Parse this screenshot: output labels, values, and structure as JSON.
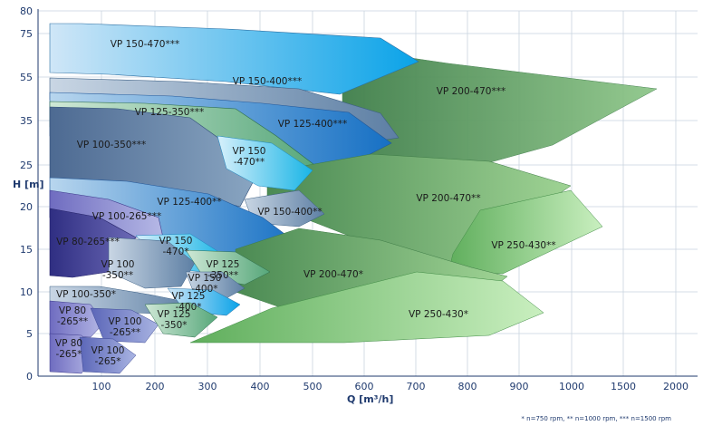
{
  "chart_data": {
    "type": "area",
    "xlabel": "Q [m³/h]",
    "ylabel": "H [m]",
    "footnote": "* n=750 rpm, ** n=1000 rpm, *** n=1500 rpm",
    "x_ticks": [
      "100",
      "200",
      "300",
      "400",
      "500",
      "600",
      "700",
      "800",
      "900",
      "1000",
      "1500",
      "2000"
    ],
    "y_ticks": [
      "0",
      "5",
      "10",
      "15",
      "20",
      "25",
      "35",
      "55",
      "75",
      "80"
    ],
    "grid": true,
    "regions": [
      {
        "label": "VP 200-470***",
        "speed": "1500 rpm",
        "color": "#5f9a5a"
      },
      {
        "label": "VP 150-470***",
        "speed": "1500 rpm",
        "color": "#2a9fd8"
      },
      {
        "label": "VP 150-400***",
        "speed": "1500 rpm",
        "color": "#7f9cb8"
      },
      {
        "label": "VP 125-400***",
        "speed": "1500 rpm",
        "color": "#1a78c8"
      },
      {
        "label": "VP 125-350***",
        "speed": "1500 rpm",
        "color": "#7bbf8a"
      },
      {
        "label": "VP 100-350***",
        "speed": "1500 rpm",
        "color": "#5e7fa6"
      },
      {
        "label": "VP 150 -470**",
        "label_lines": [
          "VP 150",
          "-470**"
        ],
        "speed": "1000 rpm",
        "color": "#6fcbe8"
      },
      {
        "label": "VP 200-470**",
        "speed": "1000 rpm",
        "color": "#6aa466"
      },
      {
        "label": "VP 250-430**",
        "speed": "1000 rpm",
        "color": "#8fd18a"
      },
      {
        "label": "VP 150-400**",
        "speed": "1000 rpm",
        "color": "#6b8bb0"
      },
      {
        "label": "VP 125-400**",
        "speed": "1000 rpm",
        "color": "#4e9ad4"
      },
      {
        "label": "VP 100-265***",
        "speed": "1500 rpm",
        "color": "#6e6ab8"
      },
      {
        "label": "VP 80-265***",
        "speed": "1500 rpm",
        "color": "#4b4a9a"
      },
      {
        "label": "VP 150 -470*",
        "label_lines": [
          "VP 150",
          "-470*"
        ],
        "speed": "750 rpm",
        "color": "#8fdcf0"
      },
      {
        "label": "VP 100 -350**",
        "label_lines": [
          "VP 100",
          "-350**"
        ],
        "speed": "1000 rpm",
        "color": "#8aa8c8"
      },
      {
        "label": "VP 125 -350**",
        "label_lines": [
          "VP 125",
          "-350**"
        ],
        "speed": "1000 rpm",
        "color": "#a8d9b0"
      },
      {
        "label": "VP 150 -400*",
        "label_lines": [
          "VP 150",
          "-400*"
        ],
        "speed": "750 rpm",
        "color": "#9fb6cc"
      },
      {
        "label": "VP 200-470*",
        "speed": "750 rpm",
        "color": "#79b274"
      },
      {
        "label": "VP 100-350*",
        "speed": "750 rpm",
        "color": "#a9bed4"
      },
      {
        "label": "VP 125 -400*",
        "label_lines": [
          "VP 125",
          "-400*"
        ],
        "speed": "750 rpm",
        "color": "#86c0e4"
      },
      {
        "label": "VP 80 -265**",
        "label_lines": [
          "VP 80",
          "-265**"
        ],
        "speed": "1000 rpm",
        "color": "#8c89cc"
      },
      {
        "label": "VP 100 -265**",
        "label_lines": [
          "VP 100",
          "-265**"
        ],
        "speed": "1000 rpm",
        "color": "#7f90c8"
      },
      {
        "label": "VP 125 -350*",
        "label_lines": [
          "VP 125",
          "-350*"
        ],
        "speed": "750 rpm",
        "color": "#c6e8c4"
      },
      {
        "label": "VP 250-430*",
        "speed": "750 rpm",
        "color": "#9fdc98"
      },
      {
        "label": "VP 80 -265*",
        "label_lines": [
          "VP 80",
          "-265*"
        ],
        "speed": "750 rpm",
        "color": "#a7a5dc"
      },
      {
        "label": "VP 100 -265*",
        "label_lines": [
          "VP 100",
          "-265*"
        ],
        "speed": "750 rpm",
        "color": "#8b9ad6"
      }
    ]
  }
}
